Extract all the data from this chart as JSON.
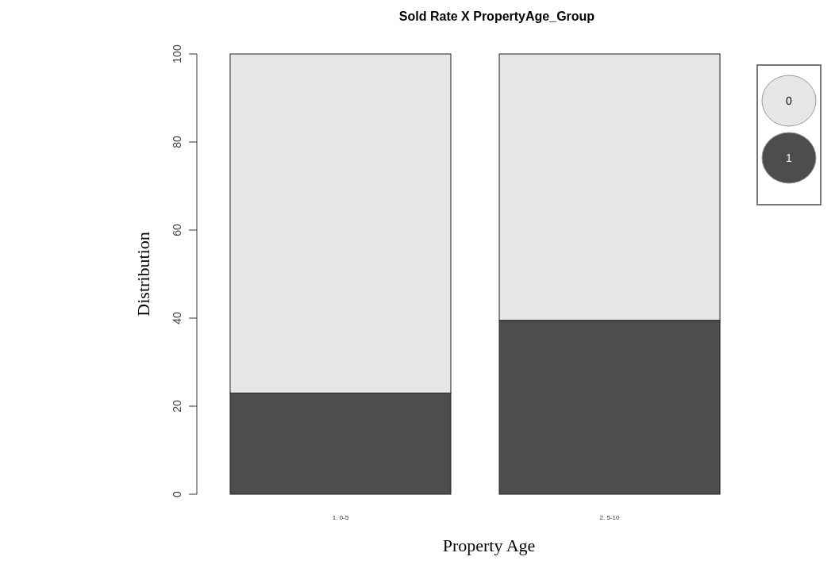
{
  "chart_data": {
    "type": "bar",
    "title": "Sold Rate X PropertyAge_Group",
    "xlabel": "Property Age",
    "ylabel": "Distribution",
    "categories": [
      "1. 0-5",
      "2. 5-10"
    ],
    "series": [
      {
        "name": "1",
        "color": "#4d4d4d",
        "values": [
          23,
          39.5
        ]
      },
      {
        "name": "0",
        "color": "#e6e6e6",
        "values": [
          77,
          60.5
        ]
      }
    ],
    "stacked": true,
    "ylim": [
      0,
      100
    ],
    "yticks": [
      0,
      20,
      40,
      60,
      80,
      100
    ],
    "legend": "top right"
  }
}
